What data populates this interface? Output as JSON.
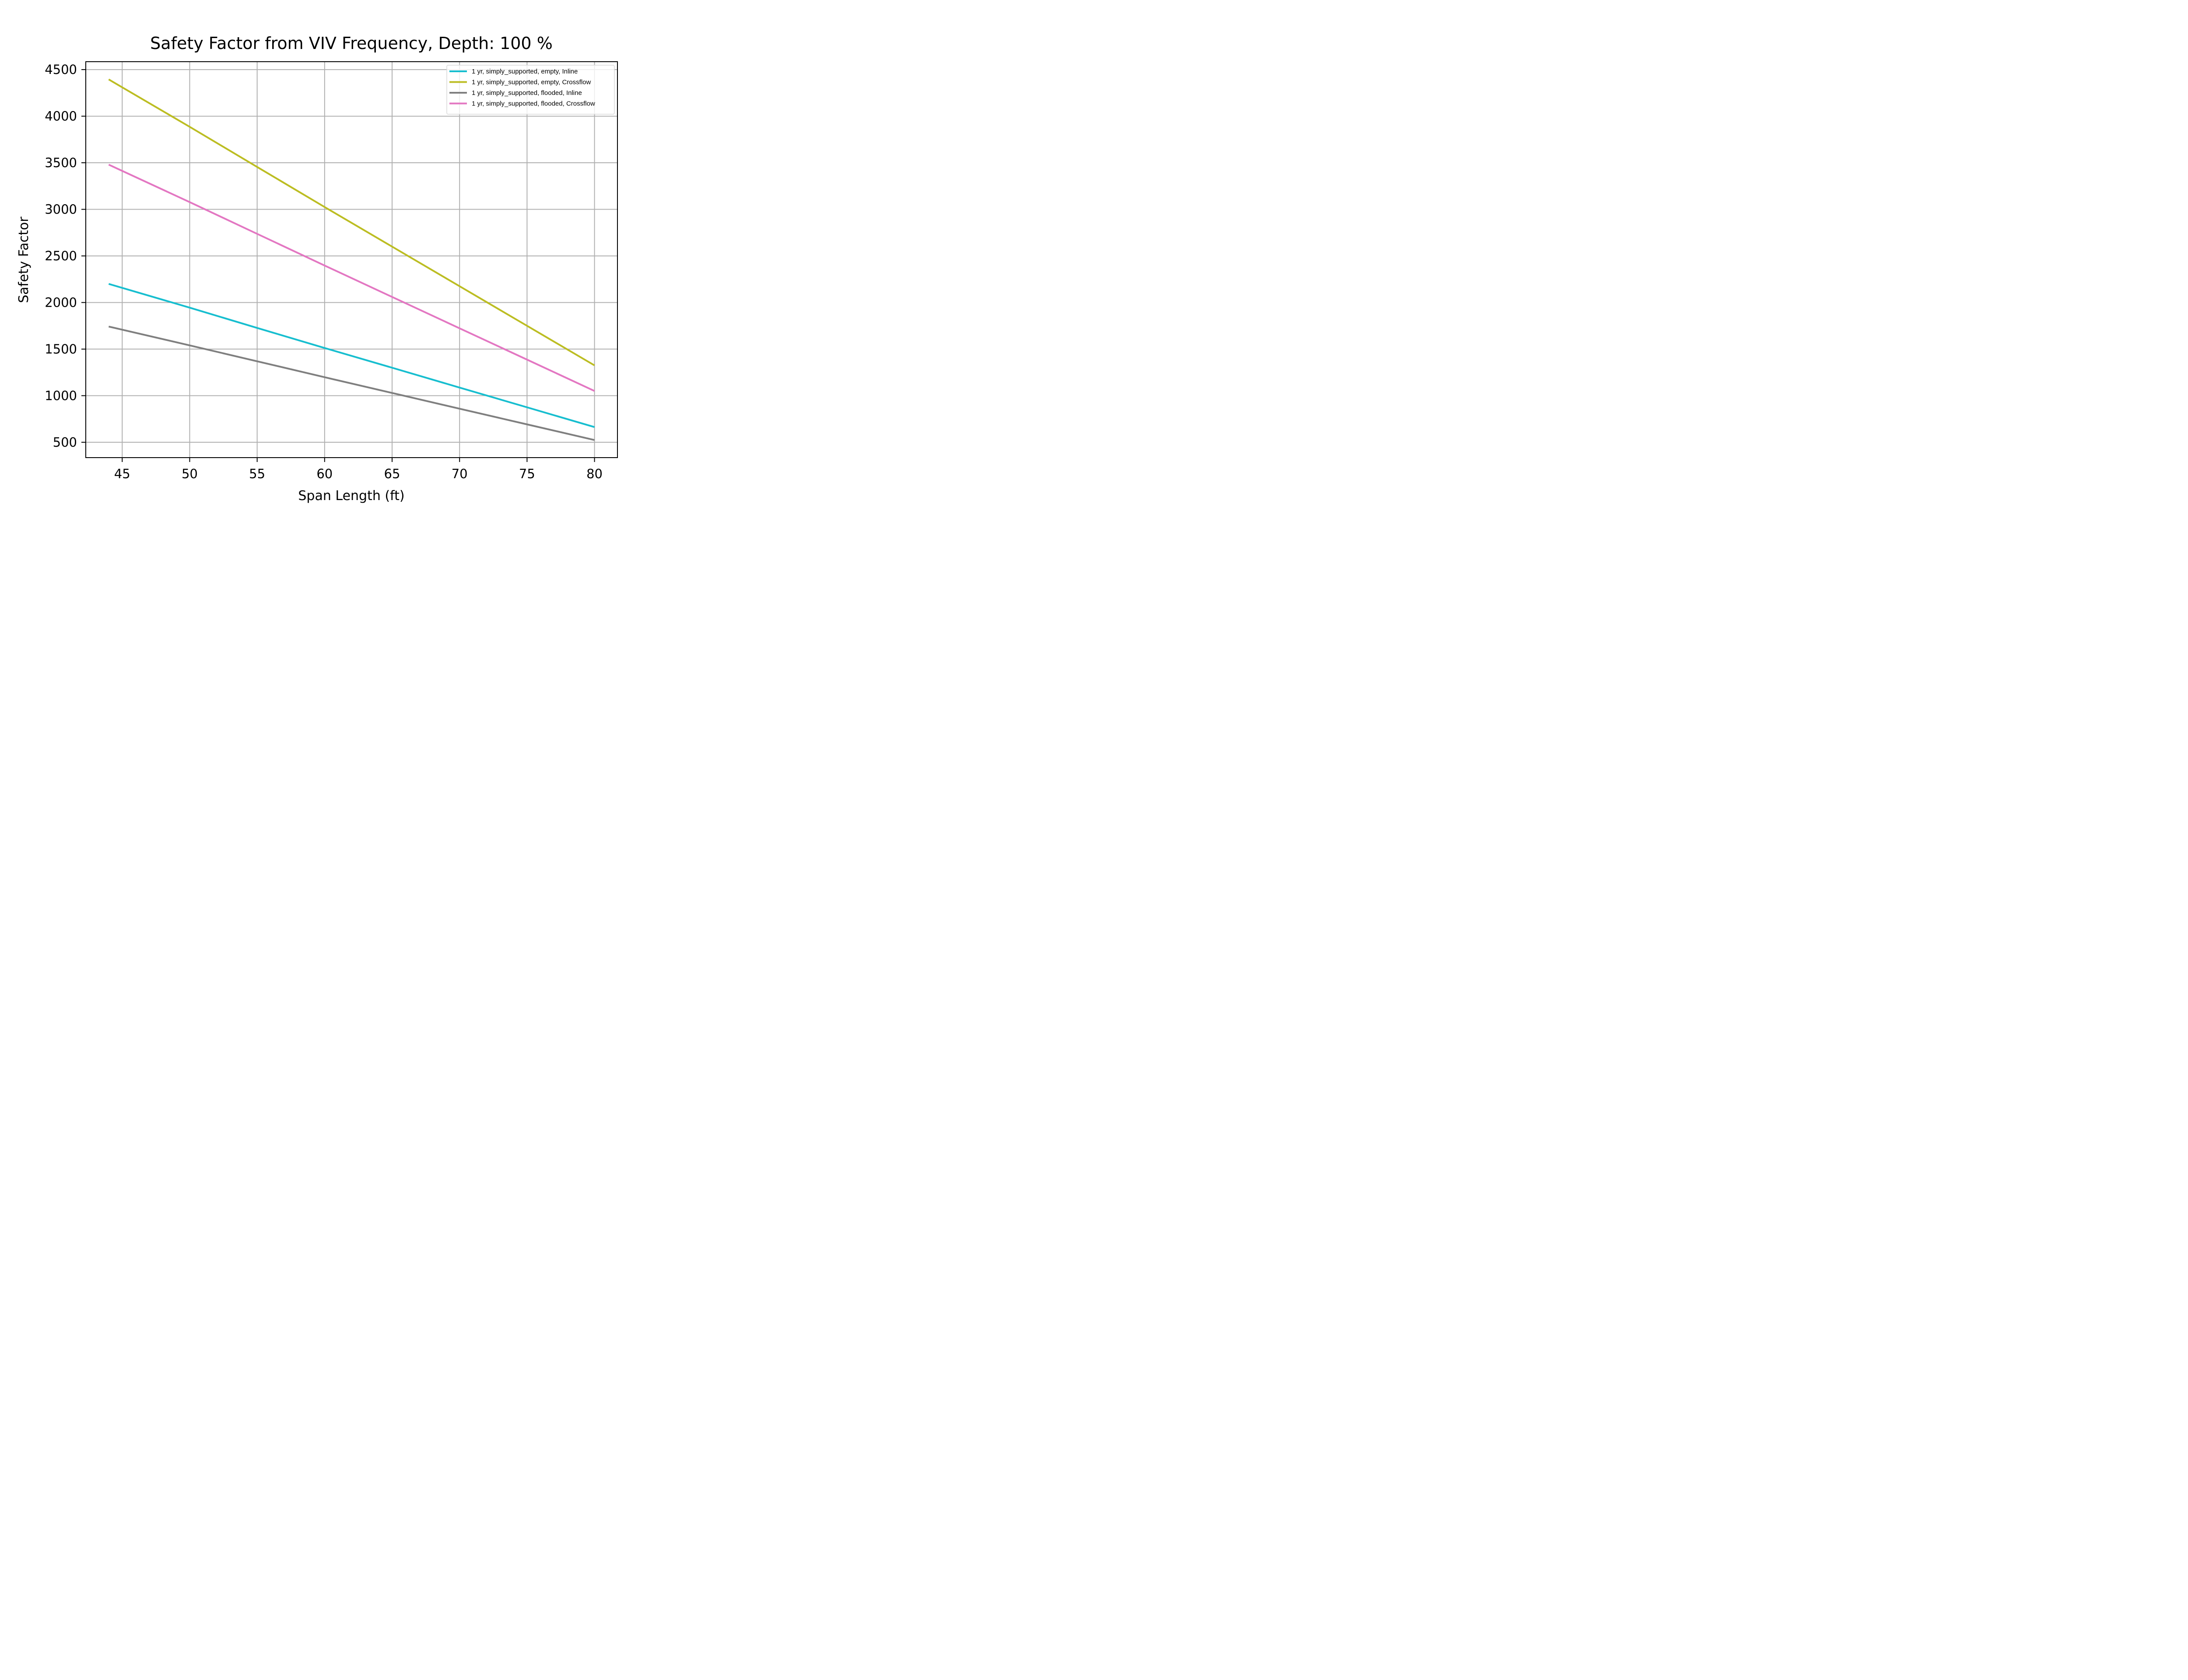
{
  "chart_data": {
    "type": "line",
    "title": "Safety Factor from VIV Frequency, Depth: 100 %",
    "xlabel": "Span Length (ft)",
    "ylabel": "Safety Factor",
    "xlim": [
      42.3,
      81.7
    ],
    "ylim": [
      335,
      4585
    ],
    "xticks": [
      45,
      50,
      55,
      60,
      65,
      70,
      75,
      80
    ],
    "yticks": [
      500,
      1000,
      1500,
      2000,
      2500,
      3000,
      3500,
      4000,
      4500
    ],
    "grid": true,
    "legend_position": "upper-right",
    "x": [
      44,
      50,
      55,
      60,
      65,
      70,
      75,
      80
    ],
    "series": [
      {
        "name": "1 yr, simply_supported, empty, Inline",
        "color": "#17becf",
        "values": [
          2200,
          1945,
          1727,
          1512,
          1300,
          1087,
          875,
          663
        ]
      },
      {
        "name": "1 yr, simply_supported, empty, Crossflow",
        "color": "#bcbd22",
        "values": [
          4395,
          3886,
          3455,
          3025,
          2600,
          2175,
          1750,
          1325
        ]
      },
      {
        "name": "1 yr, simply_supported, flooded, Inline",
        "color": "#7f7f7f",
        "values": [
          1742,
          1540,
          1369,
          1198,
          1029,
          860,
          692,
          524
        ]
      },
      {
        "name": "1 yr, simply_supported, flooded, Crossflow",
        "color": "#e377c2",
        "values": [
          3480,
          3078,
          2737,
          2397,
          2060,
          1723,
          1387,
          1050
        ]
      }
    ]
  }
}
